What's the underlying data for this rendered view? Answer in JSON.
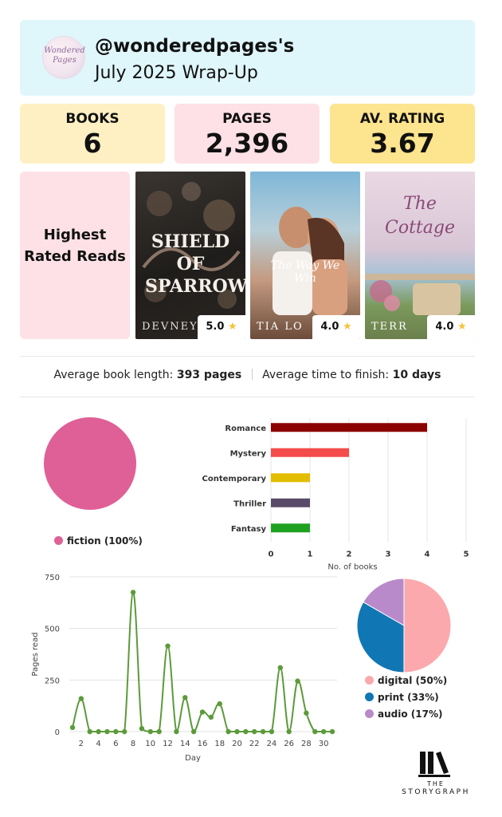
{
  "header": {
    "logo_text": "Wondered Pages",
    "username": "@wonderedpages's",
    "title": "July 2025 Wrap-Up"
  },
  "stats": [
    {
      "label": "BOOKS",
      "value": "6",
      "color": "#fff0c4"
    },
    {
      "label": "PAGES",
      "value": "2,396",
      "color": "#fde1e6"
    },
    {
      "label": "AV. RATING",
      "value": "3.67",
      "color": "#fde48e"
    }
  ],
  "highest_rated": {
    "label": "Highest Rated Reads",
    "books": [
      {
        "title": "SHIELD OF SPARROWS",
        "author": "DEVNEY",
        "rating": "5.0"
      },
      {
        "title": "The Way We Win",
        "author": "TIA LO",
        "rating": "4.0"
      },
      {
        "title": "The Cottage",
        "author": "TERR",
        "rating": "4.0"
      }
    ]
  },
  "averages": {
    "length_label": "Average book length:",
    "length_value": "393 pages",
    "time_label": "Average time to finish:",
    "time_value": "10 days"
  },
  "chart_data": [
    {
      "type": "pie",
      "slices": [
        {
          "label": "fiction (100%)",
          "value": 100,
          "color": "#df6096"
        }
      ]
    },
    {
      "type": "bar",
      "orientation": "horizontal",
      "categories": [
        "Romance",
        "Mystery",
        "Contemporary",
        "Thriller",
        "Fantasy"
      ],
      "values": [
        4,
        2,
        1,
        1,
        1
      ],
      "colors": [
        "#8b0000",
        "#f44b4b",
        "#e3bd00",
        "#5a4a6a",
        "#20a020"
      ],
      "xlabel": "No. of books",
      "xlim": [
        0,
        5
      ],
      "xticks": [
        0,
        1,
        2,
        3,
        4,
        5
      ]
    },
    {
      "type": "line",
      "x": [
        1,
        2,
        3,
        4,
        5,
        6,
        7,
        8,
        9,
        10,
        11,
        12,
        13,
        14,
        15,
        16,
        17,
        18,
        19,
        20,
        21,
        22,
        23,
        24,
        25,
        26,
        27,
        28,
        29,
        30,
        31
      ],
      "values": [
        20,
        160,
        0,
        0,
        0,
        0,
        0,
        675,
        15,
        0,
        0,
        415,
        0,
        165,
        0,
        95,
        70,
        135,
        0,
        0,
        0,
        0,
        0,
        0,
        310,
        0,
        245,
        90,
        0,
        0,
        0
      ],
      "color": "#5c9a3a",
      "xlabel": "Day",
      "ylabel": "Pages read",
      "ylim": [
        0,
        750
      ],
      "yticks": [
        0,
        250,
        500,
        750
      ],
      "xticks": [
        2,
        4,
        6,
        8,
        10,
        12,
        14,
        16,
        18,
        20,
        22,
        24,
        26,
        28,
        30
      ]
    },
    {
      "type": "pie",
      "slices": [
        {
          "label": "digital (50%)",
          "value": 50,
          "color": "#fba9ad"
        },
        {
          "label": "print (33%)",
          "value": 33.3,
          "color": "#1177b4"
        },
        {
          "label": "audio (17%)",
          "value": 16.7,
          "color": "#b98ac9"
        }
      ]
    }
  ],
  "branding": {
    "the": "THE",
    "name": "STORYGRAPH"
  }
}
